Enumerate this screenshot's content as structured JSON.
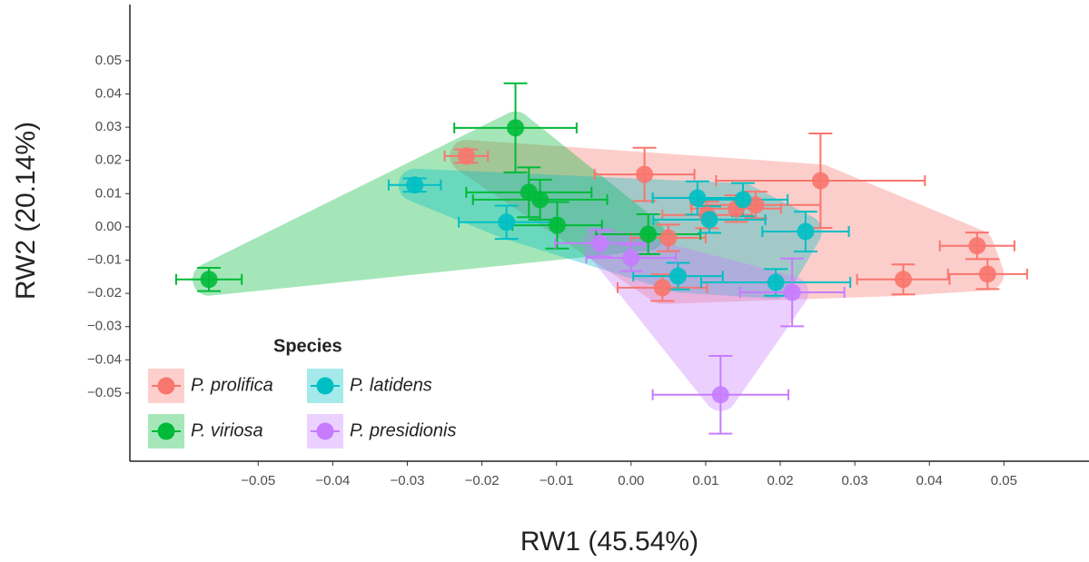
{
  "chart_data": {
    "type": "scatter",
    "x_label": "RW1 (45.54%)",
    "y_label": "RW2 (20.14%)",
    "legend_title": "Species",
    "legend": "bottom-left",
    "grid": false,
    "xlim": [
      -0.0672,
      0.0614
    ],
    "ylim": [
      -0.0705,
      0.0669
    ],
    "xticks": [
      {
        "value": -0.05,
        "label": "−0.05"
      },
      {
        "value": -0.04,
        "label": "−0.04"
      },
      {
        "value": -0.03,
        "label": "−0.03"
      },
      {
        "value": -0.02,
        "label": "−0.02"
      },
      {
        "value": -0.01,
        "label": "−0.01"
      },
      {
        "value": 0,
        "label": "0.00"
      },
      0.01,
      0.02,
      0.03,
      0.04,
      0.05
    ],
    "yticks": [
      {
        "value": -0.05,
        "label": "−0.05"
      },
      {
        "value": -0.04,
        "label": "−0.04"
      },
      {
        "value": -0.03,
        "label": "−0.03"
      },
      {
        "value": -0.02,
        "label": "−0.02"
      },
      {
        "value": -0.01,
        "label": "−0.01"
      },
      {
        "value": 0,
        "label": "0.00"
      },
      0.01,
      0.02,
      0.03,
      0.04,
      0.05
    ],
    "series": [
      {
        "name": "P. prolifica",
        "color": "#F8766D",
        "x": [
          -0.0221,
          0.0018,
          0.0254,
          0.0167,
          0.0141,
          0.0102,
          0.0464,
          0.0478,
          0.0365,
          0.0042,
          0.005
        ],
        "y": [
          0.0213,
          0.0158,
          0.0139,
          0.0066,
          0.0055,
          0.0036,
          -0.0057,
          -0.0142,
          -0.0158,
          -0.0183,
          -0.0033
        ],
        "x_error": [
          0.0029,
          0.0067,
          0.014,
          0.0087,
          0.006,
          0.006,
          0.005,
          0.0053,
          0.0062,
          0.006,
          0.005
        ],
        "y_error": [
          0.002,
          0.008,
          0.0142,
          0.004,
          0.004,
          0.004,
          0.004,
          0.0045,
          0.0045,
          0.004,
          0.004
        ]
      },
      {
        "name": "P. viriosa",
        "color": "#00BA38",
        "x": [
          -0.0566,
          -0.0155,
          -0.0137,
          -0.0122,
          -0.0099,
          0.0023
        ],
        "y": [
          -0.0158,
          0.0298,
          0.0104,
          0.0082,
          0.0005,
          -0.0022
        ],
        "x_error": [
          0.0044,
          0.0082,
          0.0084,
          0.009,
          0.006,
          0.007
        ],
        "y_error": [
          0.0035,
          0.0134,
          0.0075,
          0.006,
          0.007,
          0.006
        ]
      },
      {
        "name": "P. latidens",
        "color": "#00BFC4",
        "x": [
          -0.029,
          -0.0167,
          0.0089,
          0.015,
          0.0105,
          0.0234,
          0.0063,
          0.0194
        ],
        "y": [
          0.0126,
          0.0014,
          0.0087,
          0.0082,
          0.0022,
          -0.0014,
          -0.0148,
          -0.0167
        ],
        "x_error": [
          0.0035,
          0.0064,
          0.006,
          0.006,
          0.0075,
          0.0058,
          0.006,
          0.01
        ],
        "y_error": [
          0.002,
          0.005,
          0.005,
          0.005,
          0.004,
          0.006,
          0.004,
          0.004
        ]
      },
      {
        "name": "P. presidionis",
        "color": "#C77CFF",
        "x": [
          0.012,
          0.0216,
          -0.0042,
          0
        ],
        "y": [
          -0.0505,
          -0.0197,
          -0.0049,
          -0.0093
        ],
        "x_error": [
          0.0091,
          0.007,
          0.006,
          0.006
        ],
        "y_error": [
          0.0117,
          0.0102,
          0.004,
          0.004
        ]
      }
    ]
  }
}
